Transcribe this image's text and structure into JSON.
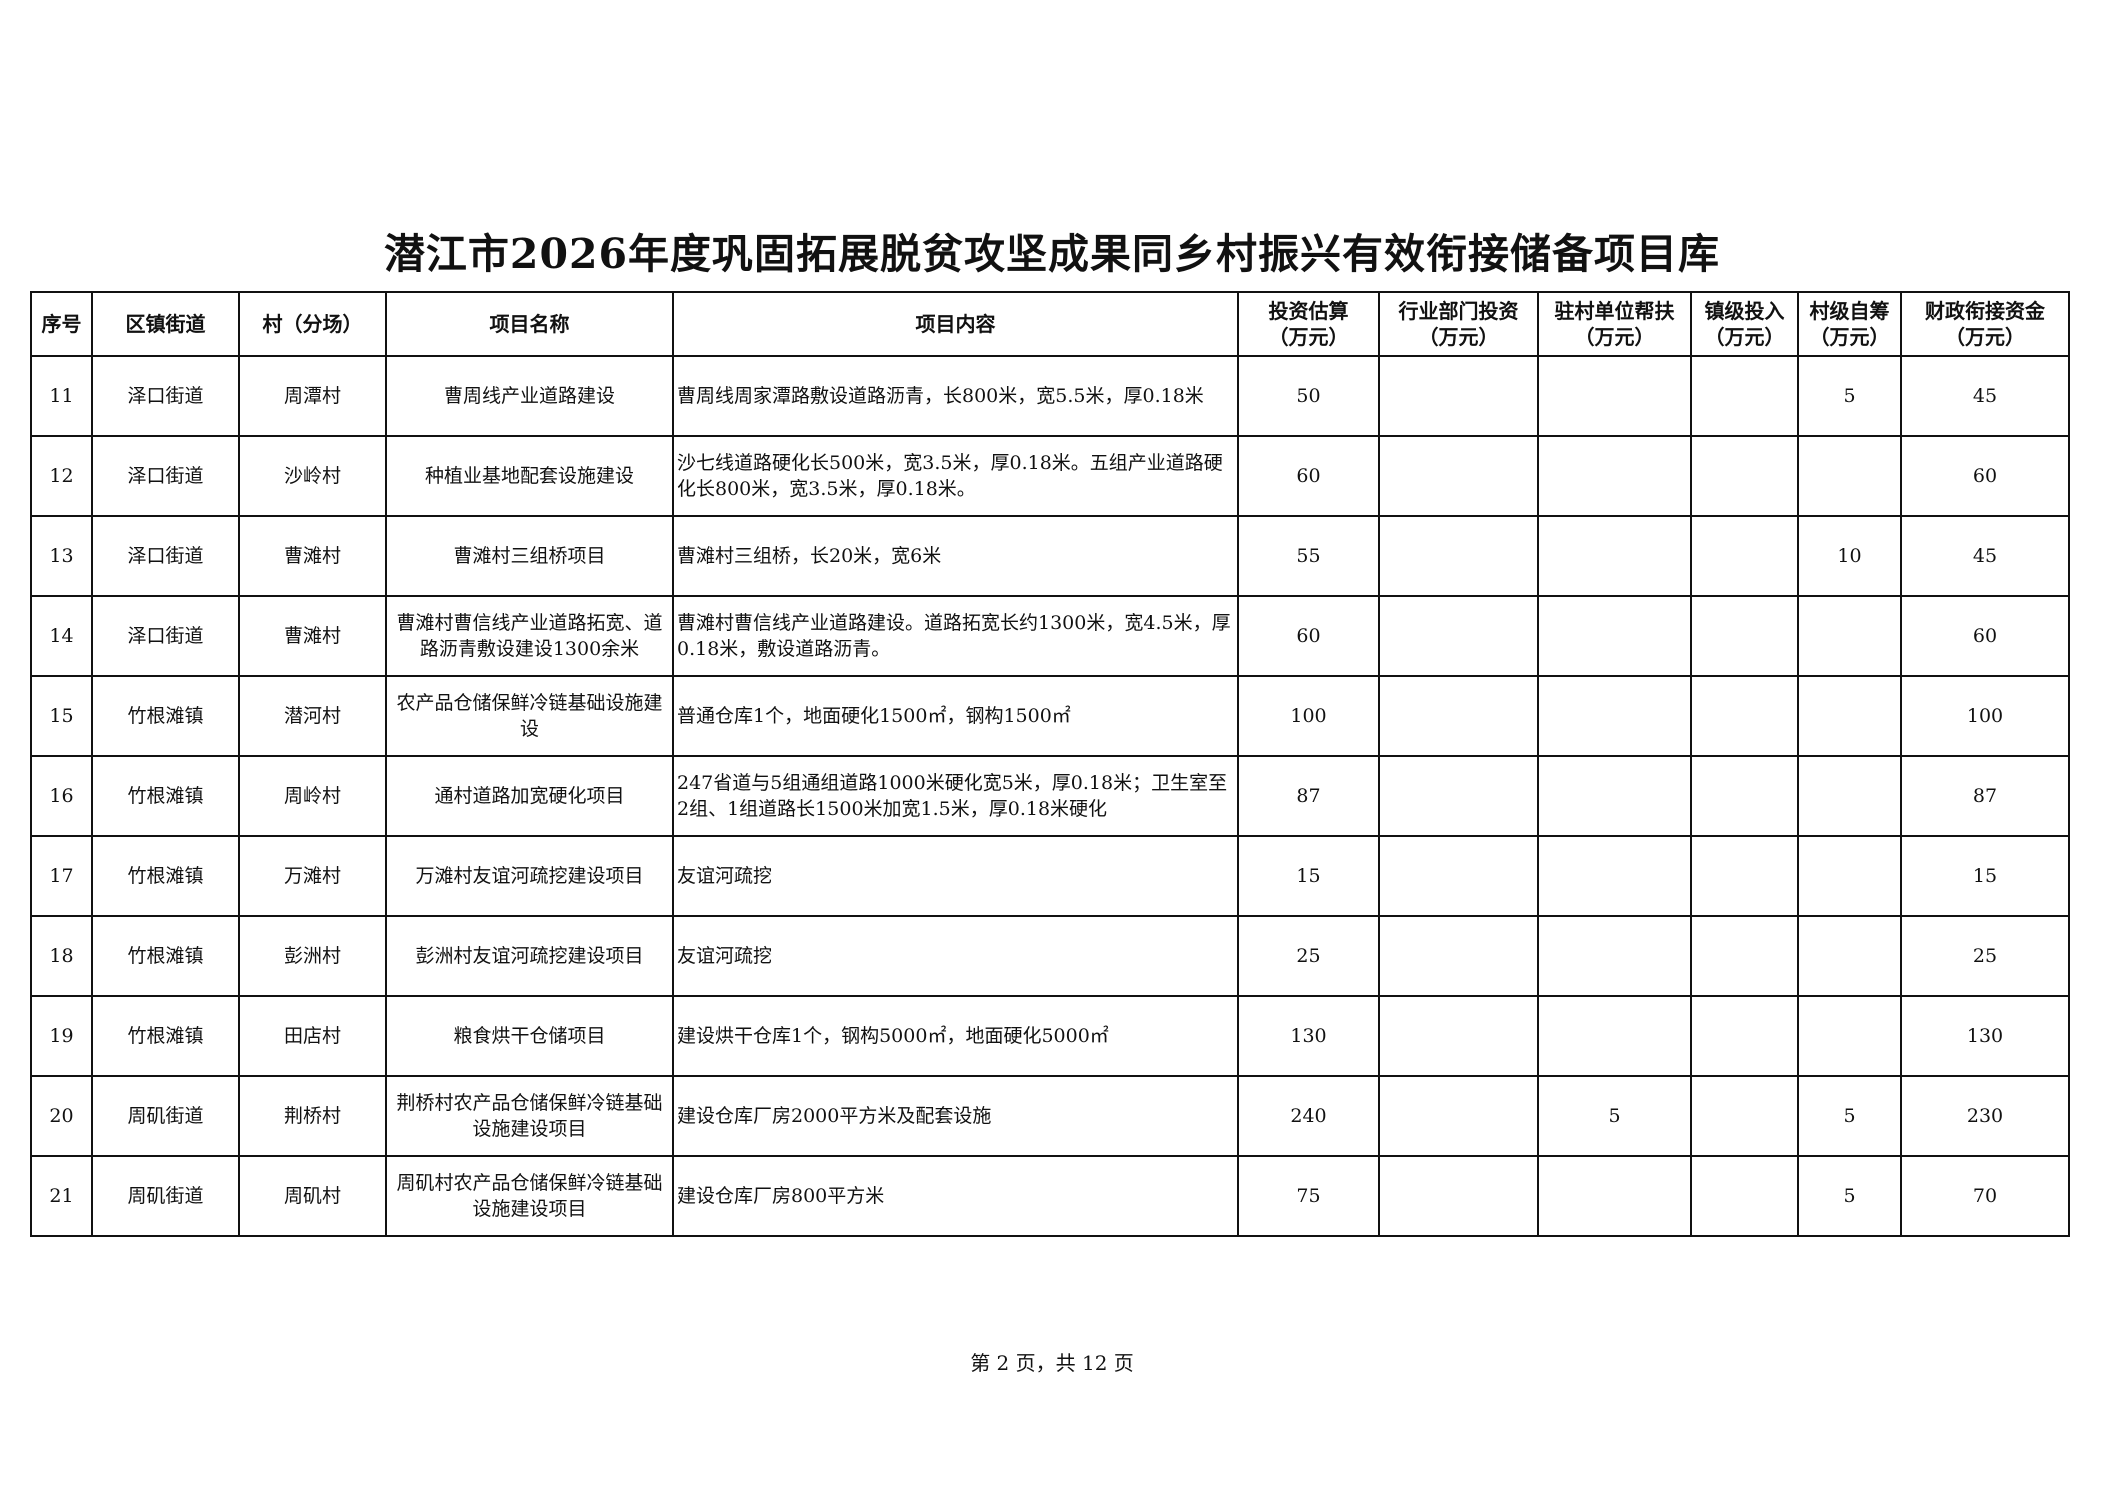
{
  "title": "潜江市2026年度巩固拓展脱贫攻坚成果同乡村振兴有效衔接储备项目库",
  "columns": [
    {
      "line1": "序号",
      "line2": ""
    },
    {
      "line1": "区镇街道",
      "line2": ""
    },
    {
      "line1": "村（分场）",
      "line2": ""
    },
    {
      "line1": "项目名称",
      "line2": ""
    },
    {
      "line1": "项目内容",
      "line2": ""
    },
    {
      "line1": "投资估算",
      "line2": "（万元）"
    },
    {
      "line1": "行业部门投资",
      "line2": "（万元）"
    },
    {
      "line1": "驻村单位帮扶",
      "line2": "（万元）"
    },
    {
      "line1": "镇级投入",
      "line2": "（万元）"
    },
    {
      "line1": "村级自筹",
      "line2": "（万元）"
    },
    {
      "line1": "财政衔接资金",
      "line2": "（万元）"
    }
  ],
  "rows": [
    [
      "11",
      "泽口街道",
      "周潭村",
      "曹周线产业道路建设",
      "曹周线周家潭路敷设道路沥青，长800米，宽5.5米，厚0.18米",
      "50",
      "",
      "",
      "",
      "5",
      "45"
    ],
    [
      "12",
      "泽口街道",
      "沙岭村",
      "种植业基地配套设施建设",
      "沙七线道路硬化长500米，宽3.5米，厚0.18米。五组产业道路硬化长800米，宽3.5米，厚0.18米。",
      "60",
      "",
      "",
      "",
      "",
      "60"
    ],
    [
      "13",
      "泽口街道",
      "曹滩村",
      "曹滩村三组桥项目",
      "曹滩村三组桥，长20米，宽6米",
      "55",
      "",
      "",
      "",
      "10",
      "45"
    ],
    [
      "14",
      "泽口街道",
      "曹滩村",
      "曹滩村曹信线产业道路拓宽、道路沥青敷设建设1300余米",
      "曹滩村曹信线产业道路建设。道路拓宽长约1300米，宽4.5米，厚0.18米，敷设道路沥青。",
      "60",
      "",
      "",
      "",
      "",
      "60"
    ],
    [
      "15",
      "竹根滩镇",
      "潜河村",
      "农产品仓储保鲜冷链基础设施建设",
      "普通仓库1个，地面硬化1500㎡，钢构1500㎡",
      "100",
      "",
      "",
      "",
      "",
      "100"
    ],
    [
      "16",
      "竹根滩镇",
      "周岭村",
      "通村道路加宽硬化项目",
      "247省道与5组通组道路1000米硬化宽5米，厚0.18米；卫生室至2组、1组道路长1500米加宽1.5米，厚0.18米硬化",
      "87",
      "",
      "",
      "",
      "",
      "87"
    ],
    [
      "17",
      "竹根滩镇",
      "万滩村",
      "万滩村友谊河疏挖建设项目",
      "友谊河疏挖",
      "15",
      "",
      "",
      "",
      "",
      "15"
    ],
    [
      "18",
      "竹根滩镇",
      "彭洲村",
      "彭洲村友谊河疏挖建设项目",
      "友谊河疏挖",
      "25",
      "",
      "",
      "",
      "",
      "25"
    ],
    [
      "19",
      "竹根滩镇",
      "田店村",
      "粮食烘干仓储项目",
      "建设烘干仓库1个，钢构5000㎡，地面硬化5000㎡",
      "130",
      "",
      "",
      "",
      "",
      "130"
    ],
    [
      "20",
      "周矶街道",
      "荆桥村",
      "荆桥村农产品仓储保鲜冷链基础设施建设项目",
      "建设仓库厂房2000平方米及配套设施",
      "240",
      "",
      "5",
      "",
      "5",
      "230"
    ],
    [
      "21",
      "周矶街道",
      "周矶村",
      "周矶村农产品仓储保鲜冷链基础设施建设项目",
      "建设仓库厂房800平方米",
      "75",
      "",
      "",
      "",
      "5",
      "70"
    ]
  ],
  "footer": "第 2 页，共 12 页"
}
